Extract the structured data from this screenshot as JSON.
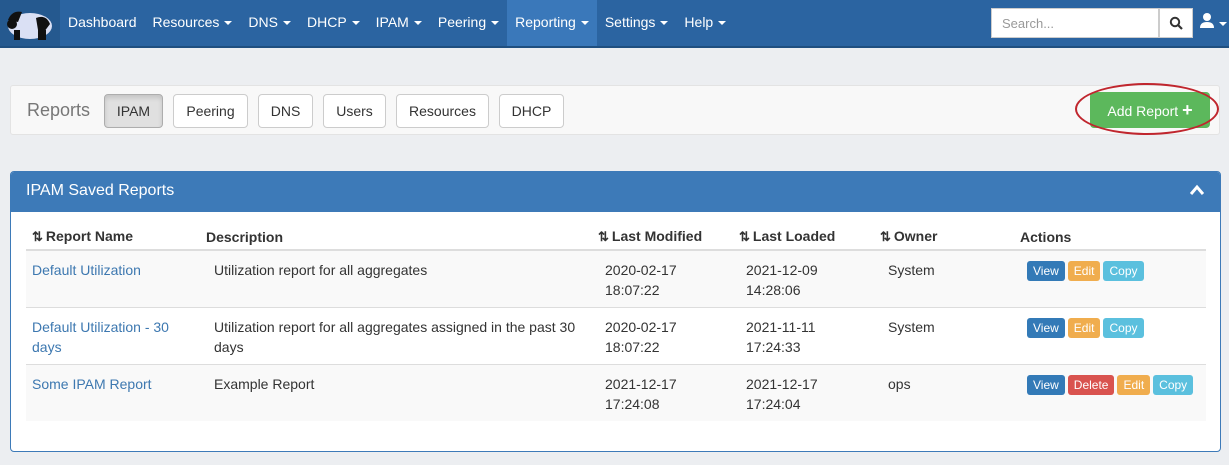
{
  "nav": {
    "items": [
      {
        "label": "Dashboard",
        "caret": false
      },
      {
        "label": "Resources",
        "caret": true
      },
      {
        "label": "DNS",
        "caret": true
      },
      {
        "label": "DHCP",
        "caret": true
      },
      {
        "label": "IPAM",
        "caret": true
      },
      {
        "label": "Peering",
        "caret": true
      },
      {
        "label": "Reporting",
        "caret": true,
        "active": true
      },
      {
        "label": "Settings",
        "caret": true
      },
      {
        "label": "Help",
        "caret": true
      }
    ],
    "search_placeholder": "Search...",
    "icons": {
      "logo": "panda-logo",
      "search": "search-icon",
      "user": "user-icon"
    }
  },
  "reports_bar": {
    "label": "Reports",
    "tabs": [
      "IPAM",
      "Peering",
      "DNS",
      "Users",
      "Resources",
      "DHCP"
    ],
    "active_tab": "IPAM",
    "add_button": "Add Report",
    "add_icon": "+"
  },
  "panel": {
    "title": "IPAM Saved Reports",
    "columns": [
      "Report Name",
      "Description",
      "Last Modified",
      "Last Loaded",
      "Owner",
      "Actions"
    ],
    "rows": [
      {
        "name": "Default Utilization",
        "description": "Utilization report for all aggregates",
        "modified_date": "2020-02-17",
        "modified_time": "18:07:22",
        "loaded_date": "2021-12-09",
        "loaded_time": "14:28:06",
        "owner": "System",
        "actions": [
          "View",
          "Edit",
          "Copy"
        ]
      },
      {
        "name": "Default Utilization - 30 days",
        "description": "Utilization report for all aggregates assigned in the past 30 days",
        "modified_date": "2020-02-17",
        "modified_time": "18:07:22",
        "loaded_date": "2021-11-11",
        "loaded_time": "17:24:33",
        "owner": "System",
        "actions": [
          "View",
          "Edit",
          "Copy"
        ]
      },
      {
        "name": "Some IPAM Report",
        "description": "Example Report",
        "modified_date": "2021-12-17",
        "modified_time": "17:24:08",
        "loaded_date": "2021-12-17",
        "loaded_time": "17:24:04",
        "owner": "ops",
        "actions": [
          "View",
          "Delete",
          "Edit",
          "Copy"
        ]
      }
    ]
  },
  "colors": {
    "navbar": "#2b64a1",
    "panel_header": "#3d7ab8",
    "add": "#5cb85c",
    "view": "#337ab7",
    "edit": "#f0ad4e",
    "delete": "#d9534f",
    "copy": "#5bc0de"
  }
}
